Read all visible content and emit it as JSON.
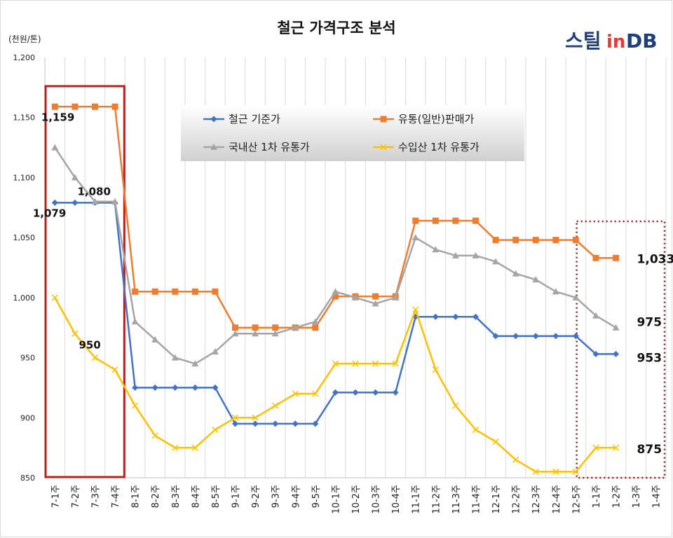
{
  "chart_data": {
    "type": "line",
    "title": "철근 가격구조 분석",
    "unit_label": "(천원/톤)",
    "ylim": [
      850,
      1200
    ],
    "yticks": [
      850,
      900,
      950,
      1000,
      1050,
      1100,
      1150,
      1200
    ],
    "ytick_labels": [
      "850",
      "900",
      "950",
      "1,000",
      "1,050",
      "1,100",
      "1,150",
      "1,200"
    ],
    "grid": "vertical",
    "legend_position": "top-center",
    "categories": [
      "7-1주",
      "7-2주",
      "7-3주",
      "7-4주",
      "8-1주",
      "8-2주",
      "8-3주",
      "8-4주",
      "8-5주",
      "9-1주",
      "9-2주",
      "9-3주",
      "9-4주",
      "9-5주",
      "10-1주",
      "10-2주",
      "10-3주",
      "10-4주",
      "11-1주",
      "11-2주",
      "11-3주",
      "11-4주",
      "12-1주",
      "12-2주",
      "12-3주",
      "12-4주",
      "12-5주",
      "1-1주",
      "1-2주",
      "1-3주",
      "1-4주"
    ],
    "series": [
      {
        "name": "철근 기준가",
        "color": "#4472c4",
        "marker": "diamond",
        "values": [
          1079,
          1079,
          1079,
          1079,
          925,
          925,
          925,
          925,
          925,
          895,
          895,
          895,
          895,
          895,
          921,
          921,
          921,
          921,
          984,
          984,
          984,
          984,
          968,
          968,
          968,
          968,
          968,
          953,
          953,
          null,
          null
        ]
      },
      {
        "name": "유통(일반)판매가",
        "color": "#ed7d31",
        "marker": "square",
        "values": [
          1159,
          1159,
          1159,
          1159,
          1005,
          1005,
          1005,
          1005,
          1005,
          975,
          975,
          975,
          975,
          975,
          1001,
          1001,
          1001,
          1001,
          1064,
          1064,
          1064,
          1064,
          1048,
          1048,
          1048,
          1048,
          1048,
          1033,
          1033,
          null,
          null
        ]
      },
      {
        "name": "국내산 1차 유통가",
        "color": "#a5a5a5",
        "marker": "triangle",
        "values": [
          1125,
          1100,
          1080,
          1080,
          980,
          965,
          950,
          945,
          955,
          970,
          970,
          970,
          975,
          980,
          1005,
          1000,
          995,
          1000,
          1050,
          1040,
          1035,
          1035,
          1030,
          1020,
          1015,
          1005,
          1000,
          985,
          975,
          null,
          null
        ]
      },
      {
        "name": "수입산 1차 유통가",
        "color": "#ffc000",
        "marker": "x",
        "values": [
          1000,
          970,
          950,
          940,
          910,
          885,
          875,
          875,
          890,
          900,
          900,
          910,
          920,
          920,
          945,
          945,
          945,
          945,
          990,
          940,
          910,
          890,
          880,
          865,
          855,
          855,
          855,
          875,
          875,
          null,
          null
        ]
      }
    ],
    "annotations": [
      {
        "text": "1,159",
        "series": 1,
        "index": 1
      },
      {
        "text": "1,080",
        "series": 2,
        "index": 2
      },
      {
        "text": "1,079",
        "series": 0,
        "index": 1
      },
      {
        "text": "950",
        "series": 3,
        "index": 2
      },
      {
        "text": "1,033",
        "series": 1,
        "index": 28
      },
      {
        "text": "975",
        "series": 2,
        "index": 28
      },
      {
        "text": "953",
        "series": 0,
        "index": 28
      },
      {
        "text": "875",
        "series": 3,
        "index": 28
      }
    ],
    "highlight_boxes": [
      {
        "from_index": 0,
        "to_index": 3,
        "style": "solid",
        "color": "#b22222"
      },
      {
        "from_index": 27,
        "to_index": 30,
        "style": "dotted",
        "color": "#8b1a1a"
      }
    ]
  },
  "logo": {
    "steel": "스틸",
    "in": "in",
    "db": "DB"
  }
}
